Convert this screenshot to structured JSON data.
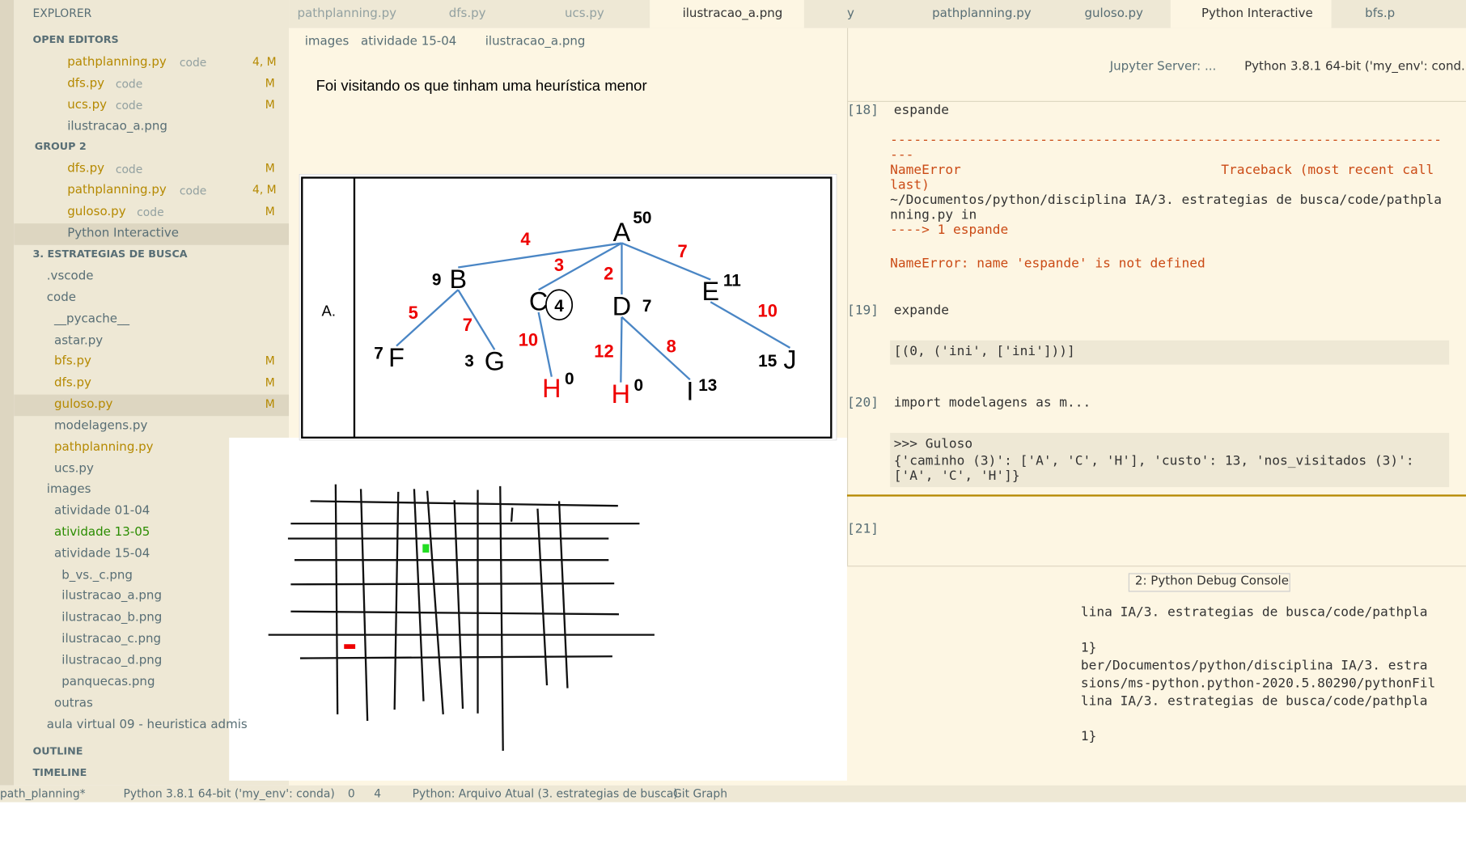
{
  "explorer": {
    "title": "EXPLORER",
    "rows": [
      {
        "text": "OPEN EDITORS"
      },
      {
        "text": "pathplanning.py",
        "desc": "code",
        "badge": "4, M"
      },
      {
        "text": "dfs.py",
        "desc": "code",
        "badge": "M"
      },
      {
        "text": "ucs.py",
        "desc": "code",
        "badge": "M"
      },
      {
        "text": "ilustracao_a.png"
      },
      {
        "text": "GROUP 2"
      },
      {
        "text": "dfs.py",
        "desc": "code",
        "badge": "M"
      },
      {
        "text": "pathplanning.py",
        "desc": "code",
        "badge": "4, M"
      },
      {
        "text": "guloso.py",
        "desc": "code",
        "badge": "M"
      },
      {
        "text": "Python Interactive"
      },
      {
        "text": "3. ESTRATEGIAS DE BUSCA"
      },
      {
        "text": ".vscode"
      },
      {
        "text": "code"
      },
      {
        "text": "__pycache__"
      },
      {
        "text": "astar.py"
      },
      {
        "text": "bfs.py",
        "badge": "M"
      },
      {
        "text": "dfs.py",
        "badge": "M"
      },
      {
        "text": "guloso.py",
        "badge": "M"
      },
      {
        "text": "modelagens.py"
      },
      {
        "text": "pathplanning.py"
      },
      {
        "text": "ucs.py"
      },
      {
        "text": "images"
      },
      {
        "text": "atividade 01-04"
      },
      {
        "text": "atividade 13-05"
      },
      {
        "text": "atividade 15-04"
      },
      {
        "text": "b_vs._c.png"
      },
      {
        "text": "ilustracao_a.png"
      },
      {
        "text": "ilustracao_b.png"
      },
      {
        "text": "ilustracao_c.png"
      },
      {
        "text": "ilustracao_d.png"
      },
      {
        "text": "panquecas.png"
      },
      {
        "text": "outras"
      },
      {
        "text": "aula virtual 09 - heuristica admis"
      },
      {
        "text": "OUTLINE"
      },
      {
        "text": "TIMELINE"
      }
    ]
  },
  "editor_left": {
    "tabs": [
      "pathplanning.py",
      "dfs.py",
      "ucs.py",
      "ilustracao_a.png"
    ],
    "breadcrumb": [
      "images",
      "atividade 15-04",
      "ilustracao_a.png"
    ],
    "image": {
      "heading": "Foi visitando os que tinham uma heurística menor",
      "row_label": "A.",
      "nodes": [
        {
          "label": "A",
          "h": "50"
        },
        {
          "label": "B",
          "h": "9"
        },
        {
          "label": "C",
          "h": "4"
        },
        {
          "label": "D",
          "h": "7"
        },
        {
          "label": "E",
          "h": "11"
        },
        {
          "label": "F",
          "h": "7"
        },
        {
          "label": "G",
          "h": "3"
        },
        {
          "label": "H",
          "h": "0"
        },
        {
          "label": "H",
          "h": "0"
        },
        {
          "label": "I",
          "h": "13"
        },
        {
          "label": "J",
          "h": "15"
        }
      ],
      "edge_weights": [
        "4",
        "3",
        "2",
        "7",
        "5",
        "7",
        "10",
        "12",
        "8",
        "10"
      ]
    }
  },
  "editor_right": {
    "tabs": [
      "y",
      "pathplanning.py",
      "guloso.py",
      "Python Interactive",
      "bfs.p"
    ],
    "server": "Jupyter Server: ...",
    "kernel": "Python 3.8.1 64-bit ('my_env': cond...",
    "cells": [
      {
        "n": "[18]",
        "input": "espande",
        "output": [
          "-------------------------------------------------------------------------",
          "NameError                                 Traceback (most recent call last)",
          "~/Documentos/python/disciplina IA/3. estrategias de busca/code/pathplanning.py in",
          "----> 1 espande",
          "",
          "NameError: name 'espande' is not defined"
        ]
      },
      {
        "n": "[19]",
        "input": "expande",
        "output": [
          "[(0, ('ini', ['ini']))]"
        ]
      },
      {
        "n": "[20]",
        "input": "import modelagens as m...",
        "output": [
          ">>> Guloso",
          "{'caminho (3)': ['A', 'C', 'H'], 'custo': 13, 'nos_visitados (3)': ['A', 'C', 'H']}"
        ]
      },
      {
        "n": "[21]"
      }
    ]
  },
  "terminal": {
    "selector": "2: Python Debug Console",
    "lines": [
      "lina IA/3. estrategias de busca/code/pathpla",
      "",
      "1}",
      "ber/Documentos/python/disciplina IA/3. estra",
      "sions/ms-python.python-2020.5.80290/pythonFil",
      "lina IA/3. estrategias de busca/code/pathpla",
      "",
      "1}"
    ]
  },
  "status": [
    "path_planning*",
    "Python 3.8.1 64-bit ('my_env': conda)",
    "0",
    "4",
    "Python: Arquivo Atual (3. estrategias de busca)",
    "Git Graph"
  ]
}
